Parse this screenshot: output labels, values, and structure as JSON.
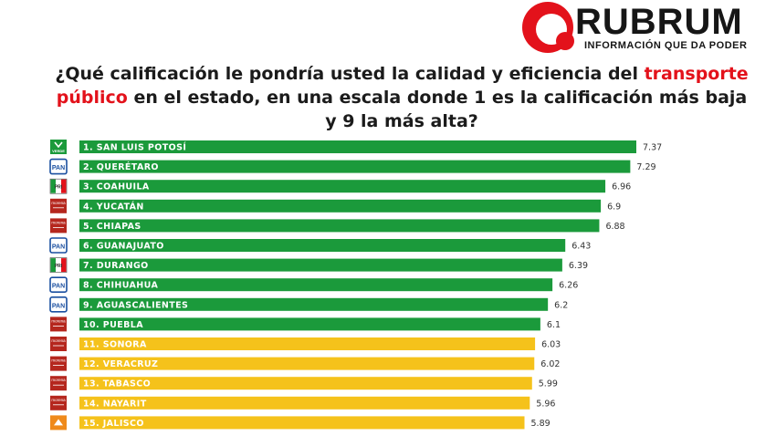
{
  "brand": {
    "name": "RUBRUM",
    "tagline": "INFORMACIÓN QUE DA PODER"
  },
  "question": {
    "before": "¿Qué calificación le pondría usted la calidad y eficiencia del ",
    "highlight": "transporte público",
    "after": " en el estado, en una escala donde 1 es la calificación más baja y 9 la más alta?"
  },
  "colors": {
    "green": "#1b9a3b",
    "yellow": "#f5c21b",
    "accent_red": "#e3121b",
    "pan_blue": "#1a4fa0",
    "morena_red": "#b5271e",
    "mc_orange": "#ef8a1b"
  },
  "chart_data": {
    "type": "bar",
    "orientation": "horizontal",
    "categories": [
      "1. SAN LUIS POTOSÍ",
      "2. QUERÉTARO",
      "3. COAHUILA",
      "4. YUCATÁN",
      "5. CHIAPAS",
      "6. GUANAJUATO",
      "7. DURANGO",
      "8. CHIHUAHUA",
      "9. AGUASCALIENTES",
      "10. PUEBLA",
      "11. SONORA",
      "12. VERACRUZ",
      "13. TABASCO",
      "14. NAYARIT",
      "15. JALISCO"
    ],
    "values": [
      7.37,
      7.29,
      6.96,
      6.9,
      6.88,
      6.43,
      6.39,
      6.26,
      6.2,
      6.1,
      6.03,
      6.02,
      5.99,
      5.96,
      5.89
    ],
    "value_labels": [
      "7.37",
      "7.29",
      "6.96",
      "6.9",
      "6.88",
      "6.43",
      "6.39",
      "6.26",
      "6.2",
      "6.1",
      "6.03",
      "6.02",
      "5.99",
      "5.96",
      "5.89"
    ],
    "bar_colors": [
      "green",
      "green",
      "green",
      "green",
      "green",
      "green",
      "green",
      "green",
      "green",
      "green",
      "yellow",
      "yellow",
      "yellow",
      "yellow",
      "yellow"
    ],
    "party_icons": [
      "verde-icon",
      "pan-icon",
      "pri-icon",
      "morena-icon",
      "morena-icon",
      "pan-icon",
      "pri-icon",
      "pan-icon",
      "pan-icon",
      "morena-icon",
      "morena-icon",
      "morena-icon",
      "morena-icon",
      "morena-icon",
      "mc-icon"
    ],
    "icon_labels": {
      "verde-icon": "VERDE",
      "pan-icon": "PAN",
      "pri-icon": "PRI",
      "morena-icon": "morena",
      "mc-icon": ""
    },
    "title": "",
    "xlabel": "",
    "ylabel": "",
    "xlim": [
      0,
      7.37
    ],
    "grid": false
  }
}
